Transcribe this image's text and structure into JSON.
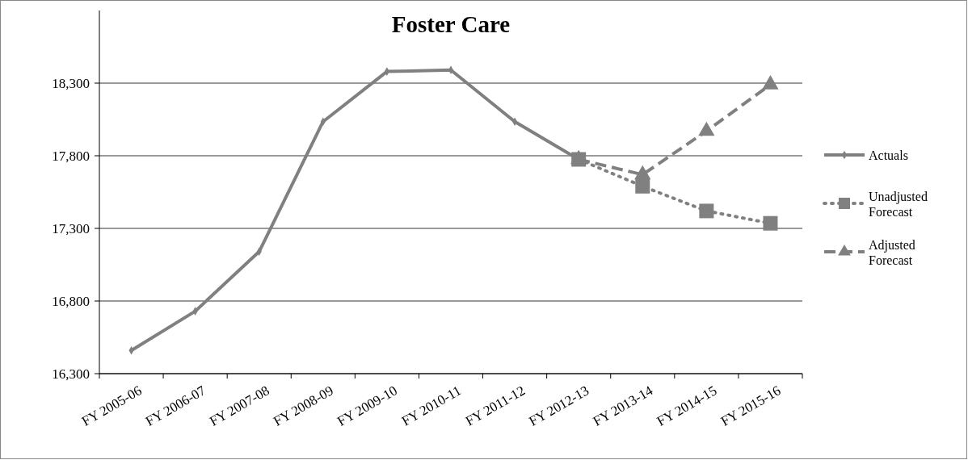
{
  "chart_data": {
    "type": "line",
    "title": "Foster Care",
    "categories": [
      "FY 2005-06",
      "FY 2006-07",
      "FY 2007-08",
      "FY 2008-09",
      "FY 2009-10",
      "FY 2010-11",
      "FY 2011-12",
      "FY 2012-13",
      "FY 2013-14",
      "FY 2014-15",
      "FY 2015-16"
    ],
    "series": [
      {
        "name": "Actuals",
        "color": "#808080",
        "marker": "diamond",
        "line_style": "solid",
        "values": [
          16460,
          16730,
          17140,
          18035,
          18380,
          18390,
          18035,
          17775,
          null,
          null,
          null
        ]
      },
      {
        "name": "Unadjusted Forecast",
        "color": "#808080",
        "marker": "square",
        "line_style": "dotted",
        "values": [
          null,
          null,
          null,
          null,
          null,
          null,
          null,
          17775,
          17590,
          17420,
          17335
        ]
      },
      {
        "name": "Adjusted Forecast",
        "color": "#808080",
        "marker": "triangle",
        "line_style": "dashed",
        "values": [
          null,
          null,
          null,
          null,
          null,
          null,
          null,
          17775,
          17670,
          17970,
          18290
        ]
      }
    ],
    "ylim": [
      16300,
      18800
    ],
    "yticks": [
      {
        "value": 16300,
        "label": "16,300"
      },
      {
        "value": 16800,
        "label": "16,800"
      },
      {
        "value": 17300,
        "label": "17,300"
      },
      {
        "value": 17800,
        "label": "17,800"
      },
      {
        "value": 18300,
        "label": "18,300"
      }
    ],
    "grid": "y",
    "legend": "right"
  }
}
